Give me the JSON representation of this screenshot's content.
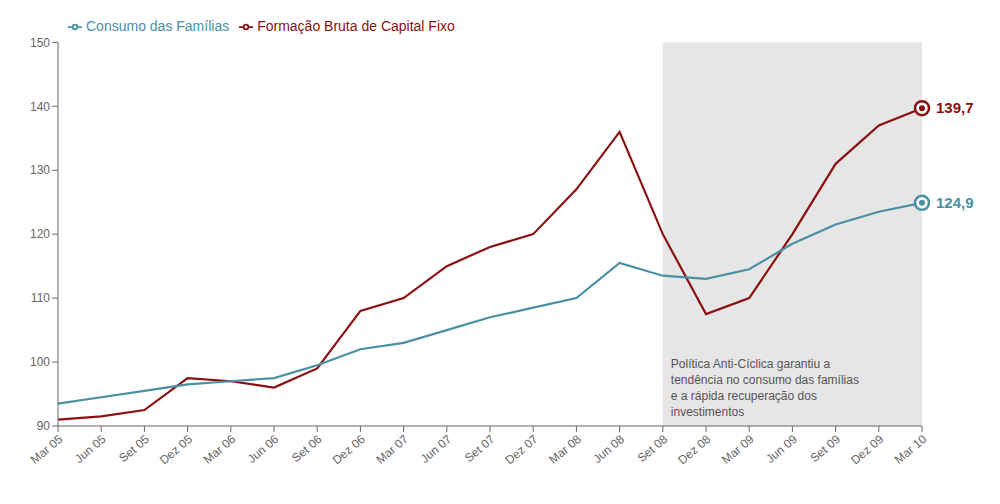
{
  "chart_data": {
    "type": "line",
    "categories": [
      "Mar 05",
      "Jun 05",
      "Set 05",
      "Dez 05",
      "Mar 06",
      "Jun 06",
      "Set 06",
      "Dez 06",
      "Mar 07",
      "Jun 07",
      "Set 07",
      "Dez 07",
      "Mar 08",
      "Jun 08",
      "Set 08",
      "Dez 08",
      "Mar 09",
      "Jun 09",
      "Set 09",
      "Dez 09",
      "Mar 10"
    ],
    "series": [
      {
        "name": "Formação Bruta de Capital Fixo",
        "color": "#8B1010",
        "values": [
          91.0,
          91.5,
          92.5,
          97.5,
          97.0,
          96.0,
          99.0,
          108.0,
          110.0,
          115.0,
          118.0,
          120.0,
          127.0,
          136.0,
          120.0,
          107.5,
          110.0,
          120.0,
          131.0,
          137.0,
          139.7
        ],
        "value_labels": [
          null,
          null,
          null,
          null,
          null,
          null,
          null,
          null,
          null,
          null,
          null,
          null,
          null,
          null,
          null,
          null,
          null,
          null,
          null,
          null,
          "139,7"
        ]
      },
      {
        "name": "Consumo das Famílias",
        "color": "#4A8FA4",
        "values": [
          93.5,
          94.5,
          95.5,
          96.5,
          97.0,
          97.5,
          99.5,
          102.0,
          103.0,
          105.0,
          107.0,
          108.5,
          110.0,
          115.5,
          113.5,
          113.0,
          114.5,
          118.5,
          121.5,
          123.5,
          124.9
        ],
        "value_labels": [
          null,
          null,
          null,
          null,
          null,
          null,
          null,
          null,
          null,
          null,
          null,
          null,
          null,
          null,
          null,
          null,
          null,
          null,
          null,
          null,
          "124,9"
        ]
      }
    ],
    "annotations": [
      {
        "text": "Política Anti-Cíclica garantiu a\ntendência no consumo das famílias\ne a rápida recuperação dos\ninvestimentos",
        "x": "Set 08"
      }
    ],
    "ylim": [
      90,
      150
    ],
    "yticks": [
      90,
      100,
      110,
      120,
      130,
      140,
      150
    ],
    "grid": false,
    "legend": "upper left"
  }
}
